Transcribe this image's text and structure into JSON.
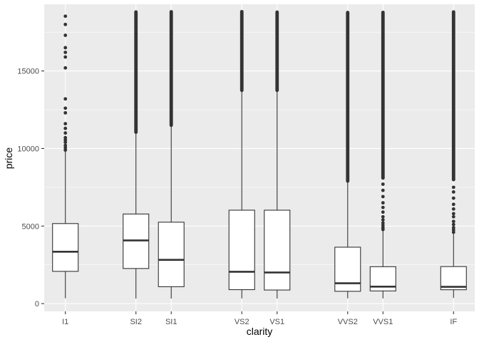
{
  "chart_data": {
    "type": "boxplot",
    "xlabel": "clarity",
    "ylabel": "price",
    "ylim": [
      -500,
      19300
    ],
    "yticks": [
      0,
      5000,
      10000,
      15000
    ],
    "categories": [
      "I1",
      "SI2",
      "SI1",
      "VS2",
      "VS1",
      "VVS2",
      "VVS1",
      "IF"
    ],
    "x_positions": [
      1,
      3,
      4,
      6,
      7,
      9,
      10,
      12
    ],
    "xlim": [
      0.4,
      12.6
    ],
    "panel_background": "#EBEBEB",
    "grid": true,
    "grid_color": "#FFFFFF",
    "box_fill": "#FFFFFF",
    "line_color": "#333333",
    "boxes": [
      {
        "category": "I1",
        "lower_whisker": 345,
        "q1": 2080,
        "median": 3344,
        "q3": 5161,
        "upper_whisker": 9800,
        "outlier_min": 9900,
        "outlier_max": 18531,
        "outliers": [
          9900,
          10050,
          10200,
          10400,
          10550,
          10700,
          11000,
          11300,
          11600,
          12300,
          12600,
          13200,
          15200,
          15900,
          16200,
          16500,
          17300,
          18000,
          18531
        ]
      },
      {
        "category": "SI2",
        "lower_whisker": 326,
        "q1": 2264,
        "median": 4072,
        "q3": 5777,
        "upper_whisker": 11000,
        "outlier_min": 11050,
        "outlier_max": 18804,
        "outliers": []
      },
      {
        "category": "SI1",
        "lower_whisker": 326,
        "q1": 1089,
        "median": 2822,
        "q3": 5250,
        "upper_whisker": 11450,
        "outlier_min": 11500,
        "outlier_max": 18818,
        "outliers": []
      },
      {
        "category": "VS2",
        "lower_whisker": 334,
        "q1": 900,
        "median": 2054,
        "q3": 6024,
        "upper_whisker": 13700,
        "outlier_min": 13750,
        "outlier_max": 18823,
        "outliers": []
      },
      {
        "category": "VS1",
        "lower_whisker": 327,
        "q1": 876,
        "median": 2005,
        "q3": 6023,
        "upper_whisker": 13700,
        "outlier_min": 13750,
        "outlier_max": 18795,
        "outliers": []
      },
      {
        "category": "VVS2",
        "lower_whisker": 336,
        "q1": 794,
        "median": 1311,
        "q3": 3638,
        "upper_whisker": 7850,
        "outlier_min": 7900,
        "outlier_max": 18768,
        "outliers": []
      },
      {
        "category": "VVS1",
        "lower_whisker": 336,
        "q1": 816,
        "median": 1093,
        "q3": 2379,
        "upper_whisker": 4700,
        "outlier_min": 4750,
        "outlier_max": 18777,
        "outliers": [
          4780,
          4900,
          5050,
          5200,
          5400,
          5600,
          5900,
          6200,
          6500,
          6900,
          7300,
          7700,
          8100
        ]
      },
      {
        "category": "IF",
        "lower_whisker": 369,
        "q1": 895,
        "median": 1080,
        "q3": 2388,
        "upper_whisker": 4500,
        "outlier_min": 4560,
        "outlier_max": 18806,
        "outliers": [
          4600,
          4750,
          4900,
          5100,
          5300,
          5600,
          5800,
          6100,
          6400,
          6800,
          7200,
          7500,
          8000
        ]
      }
    ]
  }
}
